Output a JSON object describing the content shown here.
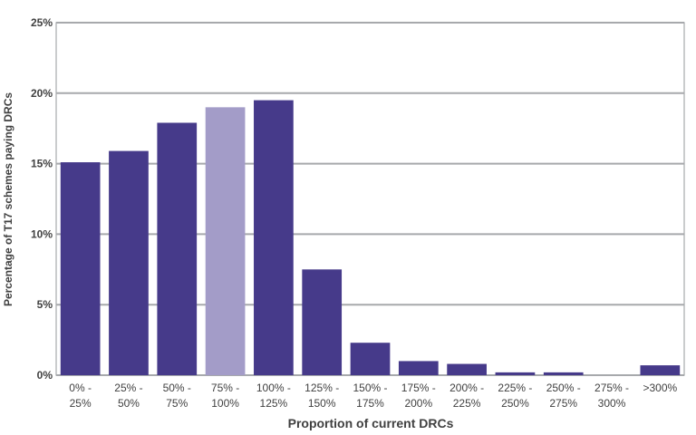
{
  "chart_data": {
    "type": "bar",
    "title": "",
    "xlabel": "Proportion of current DRCs",
    "ylabel": "Percentage of T17 schemes paying DRCs",
    "ylim": [
      0,
      25
    ],
    "yticks": [
      "0%",
      "5%",
      "10%",
      "15%",
      "20%",
      "25%"
    ],
    "grid": true,
    "categories": [
      [
        "0% -",
        "25%"
      ],
      [
        "25% -",
        "50%"
      ],
      [
        "50% -",
        "75%"
      ],
      [
        "75% -",
        "100%"
      ],
      [
        "100% -",
        "125%"
      ],
      [
        "125% -",
        "150%"
      ],
      [
        "150% -",
        "175%"
      ],
      [
        "175% -",
        "200%"
      ],
      [
        "200% -",
        "225%"
      ],
      [
        "225% -",
        "250%"
      ],
      [
        "250% -",
        "275%"
      ],
      [
        "275% -",
        "300%"
      ],
      [
        ">300%"
      ]
    ],
    "values": [
      15.1,
      15.9,
      17.9,
      19.0,
      19.5,
      7.5,
      2.3,
      1.0,
      0.8,
      0.2,
      0.2,
      0.0,
      0.7
    ],
    "highlight_index": 3,
    "colors": {
      "bar": "#463a8a",
      "highlight": "#a39cc8",
      "grid": "#a7a9ac",
      "frame": "#a7a9ac",
      "text": "#404040"
    }
  }
}
